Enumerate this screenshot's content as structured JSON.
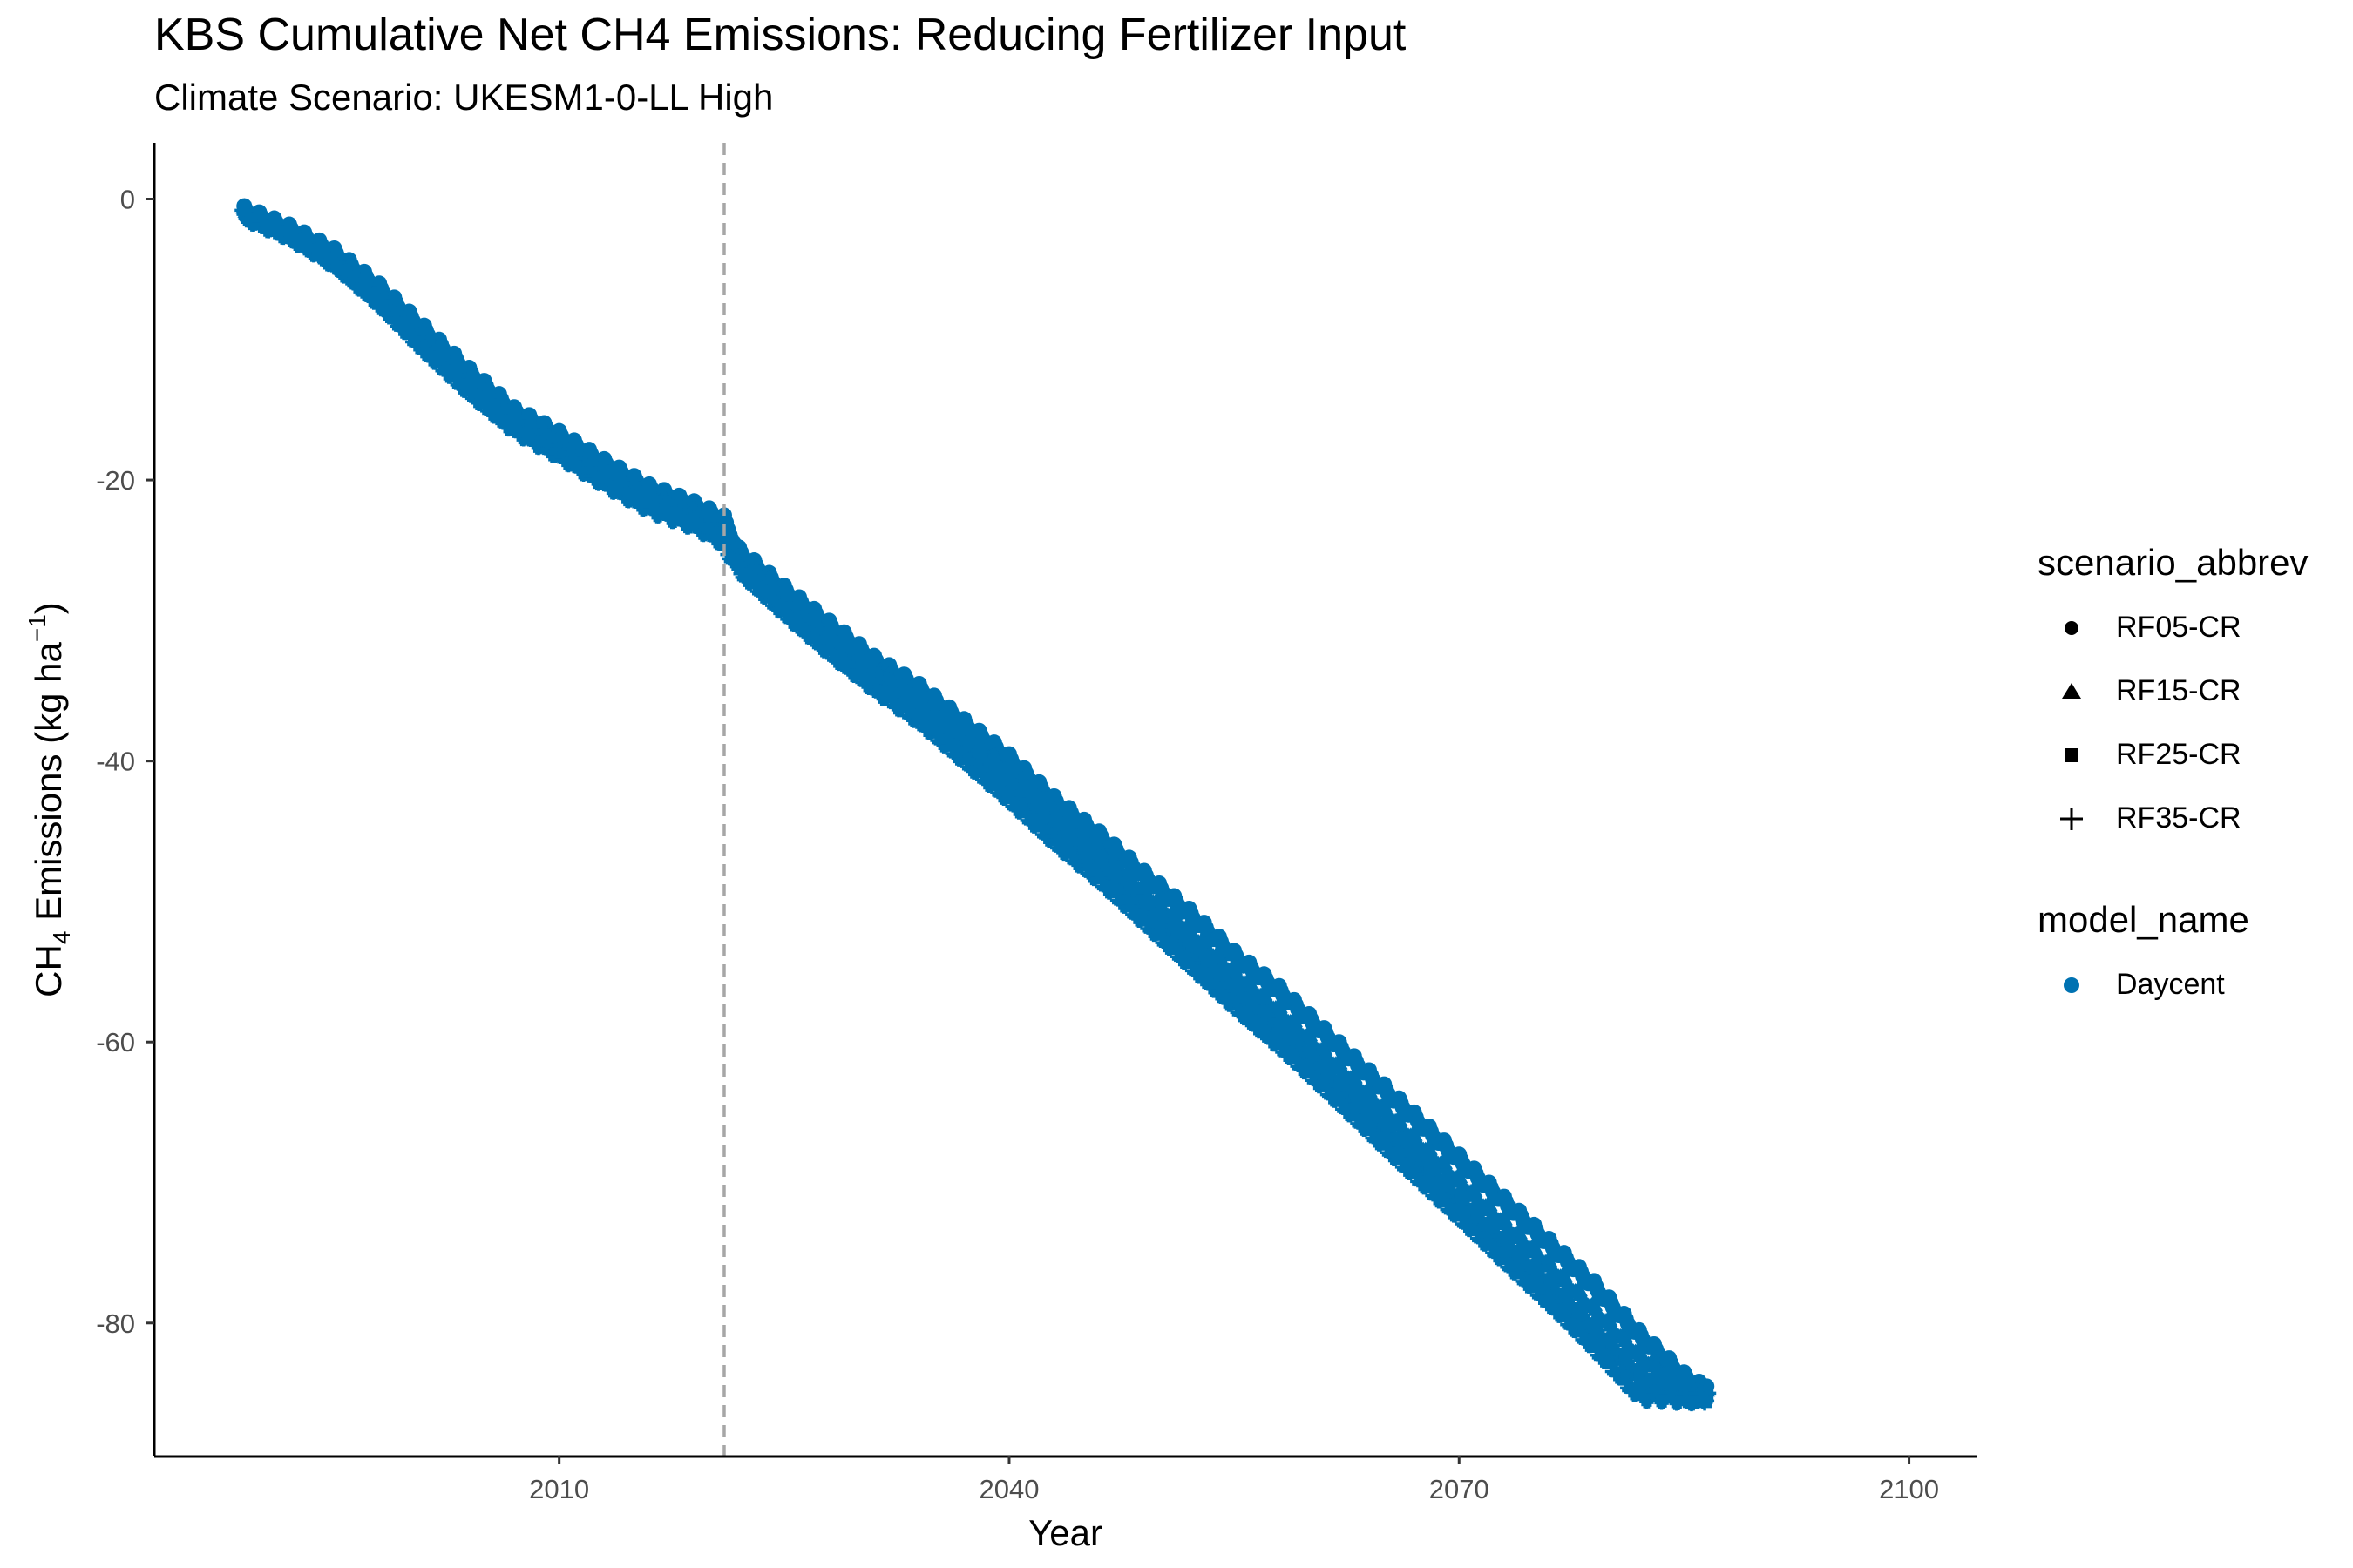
{
  "chart_data": {
    "type": "scatter",
    "title": "KBS  Cumulative Net CH4 Emissions: Reducing Fertilizer Input",
    "subtitle": "Climate Scenario: UKESM1-0-LL High",
    "xlabel": "Year",
    "ylabel": {
      "prefix": "CH",
      "sub": "4",
      "mid": " Emissions (kg ha",
      "sup": "−1",
      "suffix": ")"
    },
    "xlim": [
      1983,
      2104.5
    ],
    "ylim": [
      -89.5,
      4.0
    ],
    "x_ticks": [
      2010,
      2040,
      2070,
      2100
    ],
    "x_tick_labels": [
      "2010",
      "2040",
      "2070",
      "2100"
    ],
    "y_ticks": [
      0,
      -20,
      -40,
      -60,
      -80
    ],
    "y_tick_labels": [
      "0",
      "-20",
      "-40",
      "-60",
      "-80"
    ],
    "vline_x": 2021,
    "grid": false,
    "legend_position": "right",
    "point_color": "#0072B2",
    "legends": [
      {
        "title": "scenario_abbrev",
        "items": [
          {
            "label": "RF05-CR",
            "shape": "circle"
          },
          {
            "label": "RF15-CR",
            "shape": "triangle"
          },
          {
            "label": "RF25-CR",
            "shape": "square"
          },
          {
            "label": "RF35-CR",
            "shape": "plus"
          }
        ]
      },
      {
        "title": "model_name",
        "items": [
          {
            "label": "Daycent",
            "color": "#0072B2"
          }
        ]
      }
    ],
    "series": [
      {
        "name": "RF05-CR",
        "shape": "circle",
        "x": [
          1989,
          1992,
          1995,
          1998,
          2001,
          2004,
          2007,
          2010,
          2013,
          2016,
          2019,
          2021,
          2022,
          2025,
          2028,
          2031,
          2034,
          2037,
          2040,
          2043,
          2046,
          2049,
          2052,
          2055,
          2058,
          2061,
          2064,
          2067,
          2070,
          2073,
          2076,
          2079,
          2082,
          2085,
          2086.5
        ],
        "y": [
          -0.5,
          -1.8,
          -3.5,
          -6.0,
          -9.0,
          -12.0,
          -14.8,
          -16.5,
          -18.5,
          -20.3,
          -21.5,
          -22.5,
          -24.8,
          -27.5,
          -30.0,
          -32.5,
          -34.5,
          -37.0,
          -39.5,
          -42.5,
          -45.0,
          -47.8,
          -50.5,
          -53.5,
          -56.0,
          -59.0,
          -62.0,
          -65.0,
          -68.0,
          -71.0,
          -74.0,
          -77.0,
          -80.5,
          -83.5,
          -84.5
        ]
      },
      {
        "name": "RF15-CR",
        "shape": "triangle",
        "x": [
          1989,
          1992,
          1995,
          1998,
          2001,
          2004,
          2007,
          2010,
          2013,
          2016,
          2019,
          2021,
          2022,
          2025,
          2028,
          2031,
          2034,
          2037,
          2040,
          2043,
          2046,
          2049,
          2052,
          2055,
          2058,
          2061,
          2064,
          2067,
          2070,
          2073,
          2076,
          2079,
          2082,
          2085,
          2086.5
        ],
        "y": [
          -0.6,
          -2.0,
          -3.8,
          -6.4,
          -9.5,
          -12.5,
          -15.2,
          -17.0,
          -19.0,
          -20.8,
          -22.0,
          -23.0,
          -25.2,
          -28.0,
          -30.6,
          -33.2,
          -35.3,
          -37.9,
          -40.5,
          -43.5,
          -46.1,
          -49.0,
          -51.8,
          -54.8,
          -57.5,
          -60.5,
          -63.5,
          -66.6,
          -69.6,
          -72.6,
          -75.6,
          -78.7,
          -82.0,
          -84.2,
          -84.8
        ]
      },
      {
        "name": "RF25-CR",
        "shape": "square",
        "x": [
          1989,
          1992,
          1995,
          1998,
          2001,
          2004,
          2007,
          2010,
          2013,
          2016,
          2019,
          2021,
          2022,
          2025,
          2028,
          2031,
          2034,
          2037,
          2040,
          2043,
          2046,
          2049,
          2052,
          2055,
          2058,
          2061,
          2064,
          2067,
          2070,
          2073,
          2076,
          2079,
          2082,
          2085,
          2086.5
        ],
        "y": [
          -0.7,
          -2.1,
          -4.0,
          -6.7,
          -9.9,
          -12.9,
          -15.6,
          -17.4,
          -19.4,
          -21.2,
          -22.4,
          -23.5,
          -25.6,
          -28.5,
          -31.2,
          -33.8,
          -36.0,
          -38.7,
          -41.4,
          -44.4,
          -47.1,
          -50.0,
          -53.0,
          -56.0,
          -58.8,
          -61.8,
          -64.8,
          -67.9,
          -71.0,
          -74.0,
          -77.0,
          -80.2,
          -83.5,
          -85.0,
          -85.0
        ]
      },
      {
        "name": "RF35-CR",
        "shape": "plus",
        "x": [
          1989,
          1992,
          1995,
          1998,
          2001,
          2004,
          2007,
          2010,
          2013,
          2016,
          2019,
          2021,
          2022,
          2025,
          2028,
          2031,
          2034,
          2037,
          2040,
          2043,
          2046,
          2049,
          2052,
          2055,
          2058,
          2061,
          2064,
          2067,
          2070,
          2073,
          2076,
          2079,
          2082,
          2085,
          2086.5
        ],
        "y": [
          -0.8,
          -2.2,
          -4.2,
          -7.0,
          -10.3,
          -13.3,
          -16.0,
          -17.8,
          -19.8,
          -21.6,
          -22.8,
          -24.0,
          -26.0,
          -29.0,
          -31.8,
          -34.4,
          -36.7,
          -39.5,
          -42.3,
          -45.3,
          -48.0,
          -51.0,
          -54.0,
          -57.0,
          -59.8,
          -62.8,
          -65.9,
          -69.0,
          -72.0,
          -75.1,
          -78.1,
          -81.3,
          -84.8,
          -85.0,
          -85.0
        ]
      }
    ]
  }
}
